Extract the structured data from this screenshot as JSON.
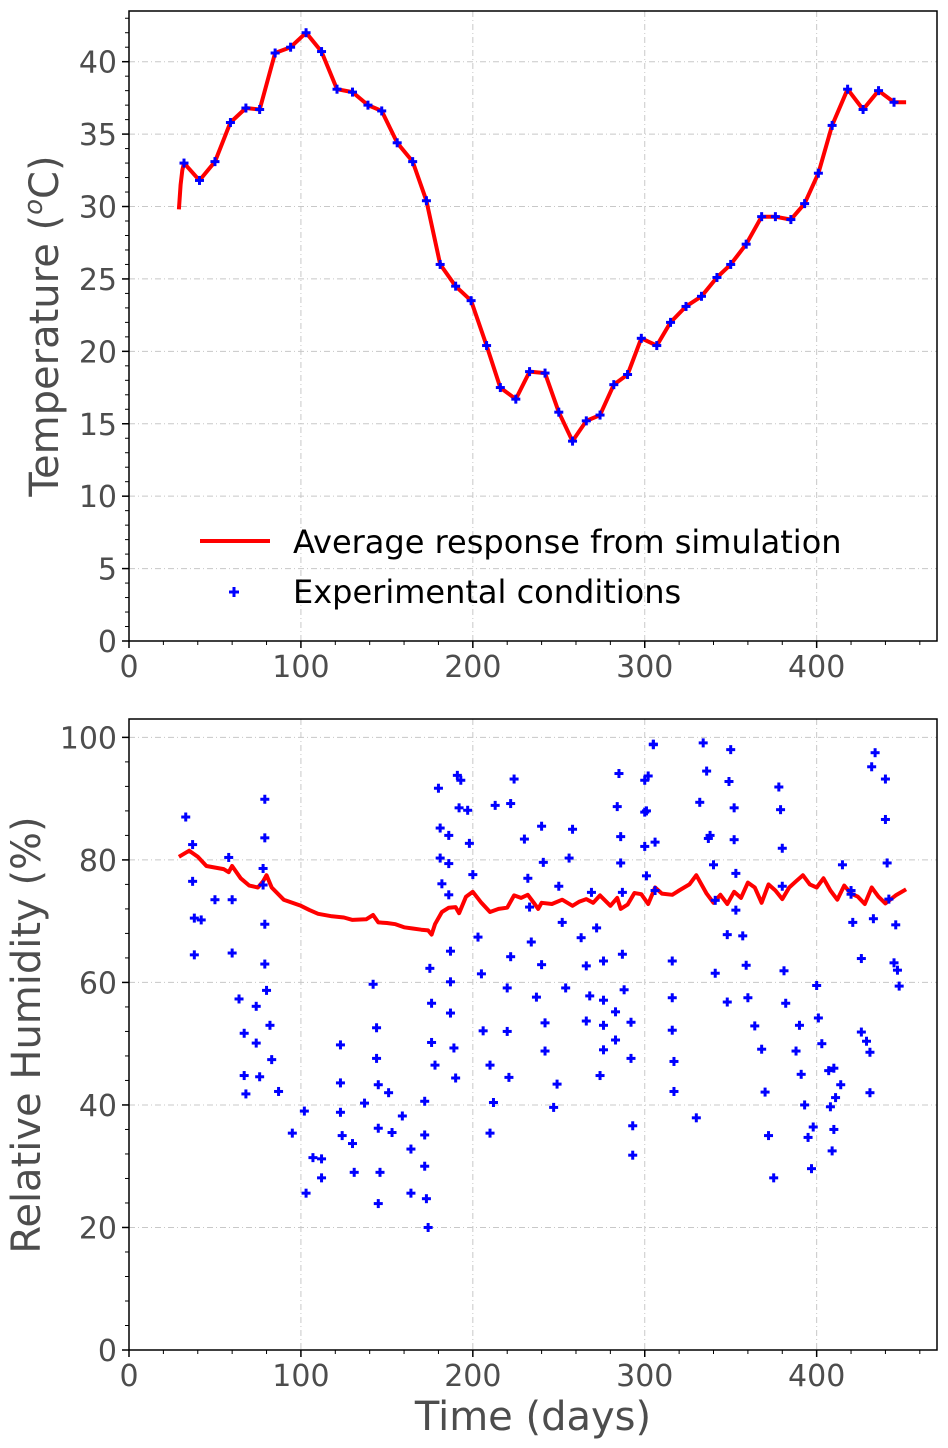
{
  "chart_data": [
    {
      "type": "line",
      "ylabel_main": "Temperature (",
      "ylabel_sup": "o",
      "ylabel_unit": "C)",
      "xlim": [
        0,
        470
      ],
      "ylim": [
        0,
        43.5
      ],
      "xticks": [
        "0",
        "100",
        "200",
        "300",
        "400"
      ],
      "yticks": [
        "0",
        "5",
        "10",
        "15",
        "20",
        "25",
        "30",
        "35",
        "40"
      ],
      "grid": true,
      "legend_position": "lower-center",
      "colors": {
        "line": "#ff0000",
        "markers": "#0000ff"
      },
      "series": [
        {
          "name": "Average response from simulation",
          "kind": "line",
          "x": [
            29,
            30,
            31,
            32,
            41,
            50,
            59,
            68,
            76,
            85,
            94,
            103,
            112,
            121,
            130,
            139,
            147,
            156,
            165,
            173,
            181,
            190,
            199,
            208,
            216,
            225,
            233,
            242,
            250,
            258,
            266,
            274,
            282,
            290,
            298,
            307,
            315,
            324,
            333,
            342,
            350,
            359,
            368,
            376,
            385,
            393,
            401,
            409,
            418,
            427,
            436,
            445,
            452
          ],
          "y": [
            29.8,
            31.5,
            32.5,
            33.0,
            31.8,
            33.1,
            35.8,
            36.8,
            36.7,
            40.6,
            41.0,
            42.0,
            40.7,
            38.1,
            37.9,
            37.0,
            36.6,
            34.4,
            33.1,
            30.4,
            26.0,
            24.5,
            23.5,
            20.4,
            17.5,
            16.7,
            18.6,
            18.5,
            15.8,
            13.8,
            15.2,
            15.6,
            17.7,
            18.4,
            20.9,
            20.4,
            22.0,
            23.1,
            23.8,
            25.1,
            26.0,
            27.4,
            29.3,
            29.3,
            29.1,
            30.2,
            32.3,
            35.6,
            38.1,
            36.7,
            38.0,
            37.2,
            37.2
          ]
        },
        {
          "name": "Experimental conditions",
          "kind": "markers",
          "x": [
            32,
            41,
            50,
            59,
            68,
            76,
            85,
            94,
            103,
            112,
            121,
            130,
            139,
            147,
            156,
            165,
            173,
            181,
            190,
            199,
            208,
            216,
            225,
            233,
            242,
            250,
            258,
            266,
            274,
            282,
            290,
            298,
            307,
            315,
            324,
            333,
            342,
            350,
            359,
            368,
            376,
            385,
            393,
            401,
            409,
            418,
            427,
            436,
            445
          ],
          "y": [
            33.0,
            31.8,
            33.1,
            35.8,
            36.8,
            36.7,
            40.6,
            41.0,
            42.0,
            40.7,
            38.1,
            37.9,
            37.0,
            36.6,
            34.4,
            33.1,
            30.4,
            26.0,
            24.5,
            23.5,
            20.4,
            17.5,
            16.7,
            18.6,
            18.5,
            15.8,
            13.8,
            15.2,
            15.6,
            17.7,
            18.4,
            20.9,
            20.4,
            22.0,
            23.1,
            23.8,
            25.1,
            26.0,
            27.4,
            29.3,
            29.3,
            29.1,
            30.2,
            32.3,
            35.6,
            38.1,
            36.7,
            38.0,
            37.2
          ]
        }
      ]
    },
    {
      "type": "line",
      "ylabel": "Relative Humidity (%)",
      "xlabel": "Time (days)",
      "xlim": [
        0,
        470
      ],
      "ylim": [
        0,
        103
      ],
      "xticks": [
        "0",
        "100",
        "200",
        "300",
        "400"
      ],
      "yticks": [
        "0",
        "20",
        "40",
        "60",
        "80",
        "100"
      ],
      "grid": true,
      "colors": {
        "line": "#ff0000",
        "markers": "#0000ff"
      },
      "series": [
        {
          "kind": "line",
          "x": [
            29,
            35,
            40,
            45,
            55,
            58,
            60,
            65,
            70,
            75,
            78,
            80,
            83,
            90,
            100,
            105,
            110,
            118,
            125,
            130,
            138,
            142,
            145,
            150,
            155,
            160,
            165,
            170,
            174,
            176,
            178,
            182,
            186,
            190,
            192,
            196,
            200,
            205,
            210,
            215,
            220,
            224,
            228,
            232,
            236,
            238,
            240,
            246,
            252,
            258,
            262,
            266,
            270,
            274,
            280,
            284,
            286,
            290,
            294,
            298,
            302,
            306,
            310,
            316,
            320,
            326,
            330,
            336,
            340,
            344,
            348,
            352,
            356,
            360,
            364,
            368,
            372,
            376,
            380,
            384,
            388,
            392,
            396,
            400,
            404,
            408,
            412,
            416,
            420,
            424,
            428,
            432,
            436,
            440,
            446,
            452
          ],
          "y": [
            80.5,
            81.5,
            80.5,
            79,
            78.5,
            78.0,
            79.0,
            77,
            75.8,
            75.5,
            76.5,
            77.5,
            75.5,
            73.5,
            72.5,
            71.8,
            71.2,
            70.8,
            70.6,
            70.2,
            70.3,
            71.0,
            69.8,
            69.7,
            69.5,
            69.0,
            68.8,
            68.6,
            68.5,
            67.8,
            69.5,
            71.5,
            72.2,
            72.3,
            71.3,
            74.0,
            74.8,
            73.0,
            71.5,
            72.0,
            72.2,
            74.2,
            73.8,
            74.3,
            72.8,
            72.0,
            73.0,
            72.8,
            73.5,
            72.5,
            73.2,
            73.6,
            73.0,
            74.2,
            72.5,
            73.8,
            72.0,
            72.7,
            74.6,
            74.4,
            72.8,
            75.5,
            74.5,
            74.3,
            75.0,
            76.0,
            77.5,
            74.5,
            73.0,
            74.3,
            72.8,
            74.8,
            73.8,
            76.3,
            75.5,
            73.0,
            76.0,
            75.0,
            73.6,
            75.5,
            76.5,
            77.5,
            76.0,
            75.5,
            77.0,
            75.0,
            73.5,
            75.8,
            74.5,
            74.0,
            72.8,
            75.5,
            74.0,
            72.9,
            74.2,
            75.2
          ]
        },
        {
          "kind": "markers",
          "x": [
            33,
            37,
            37,
            38,
            38,
            42,
            50,
            58,
            60,
            60,
            64,
            67,
            67,
            68,
            74,
            74,
            76,
            78,
            78,
            79,
            79,
            79,
            79,
            80,
            82,
            83,
            87,
            95,
            102,
            103,
            107,
            112,
            112,
            123,
            123,
            123,
            124,
            130,
            131,
            137,
            142,
            144,
            144,
            145,
            145,
            145,
            146,
            151,
            153,
            159,
            164,
            164,
            172,
            172,
            172,
            173,
            174,
            175,
            176,
            176,
            178,
            180,
            181,
            181,
            182,
            186,
            186,
            186,
            187,
            187,
            187,
            189,
            190,
            191,
            192,
            193,
            197,
            198,
            200,
            203,
            205,
            206,
            210,
            210,
            212,
            213,
            220,
            220,
            221,
            222,
            222,
            224,
            230,
            232,
            233,
            234,
            237,
            240,
            240,
            241,
            242,
            242,
            247,
            249,
            250,
            252,
            254,
            256,
            258,
            263,
            266,
            266,
            268,
            269,
            272,
            274,
            276,
            276,
            276,
            276,
            283,
            283,
            284,
            285,
            286,
            286,
            287,
            287,
            288,
            292,
            292,
            293,
            293,
            300,
            300,
            300,
            301,
            301,
            302,
            305,
            305,
            306,
            306,
            316,
            316,
            316,
            317,
            317,
            330,
            332,
            334,
            336,
            337,
            338,
            340,
            341,
            341,
            348,
            348,
            349,
            350,
            352,
            352,
            353,
            353,
            357,
            359,
            360,
            364,
            368,
            370,
            372,
            375,
            378,
            379,
            380,
            380,
            381,
            382,
            388,
            390,
            391,
            393,
            395,
            397,
            398,
            400,
            401,
            403,
            407,
            408,
            409,
            410,
            410,
            411,
            414,
            415,
            420,
            420,
            421,
            426,
            426,
            429,
            431,
            431,
            432,
            433,
            434,
            440,
            440,
            441,
            442,
            445,
            446,
            447,
            448
          ]
        }
      ]
    }
  ],
  "legend": {
    "items": [
      "Average response from simulation",
      "Experimental conditions"
    ]
  }
}
